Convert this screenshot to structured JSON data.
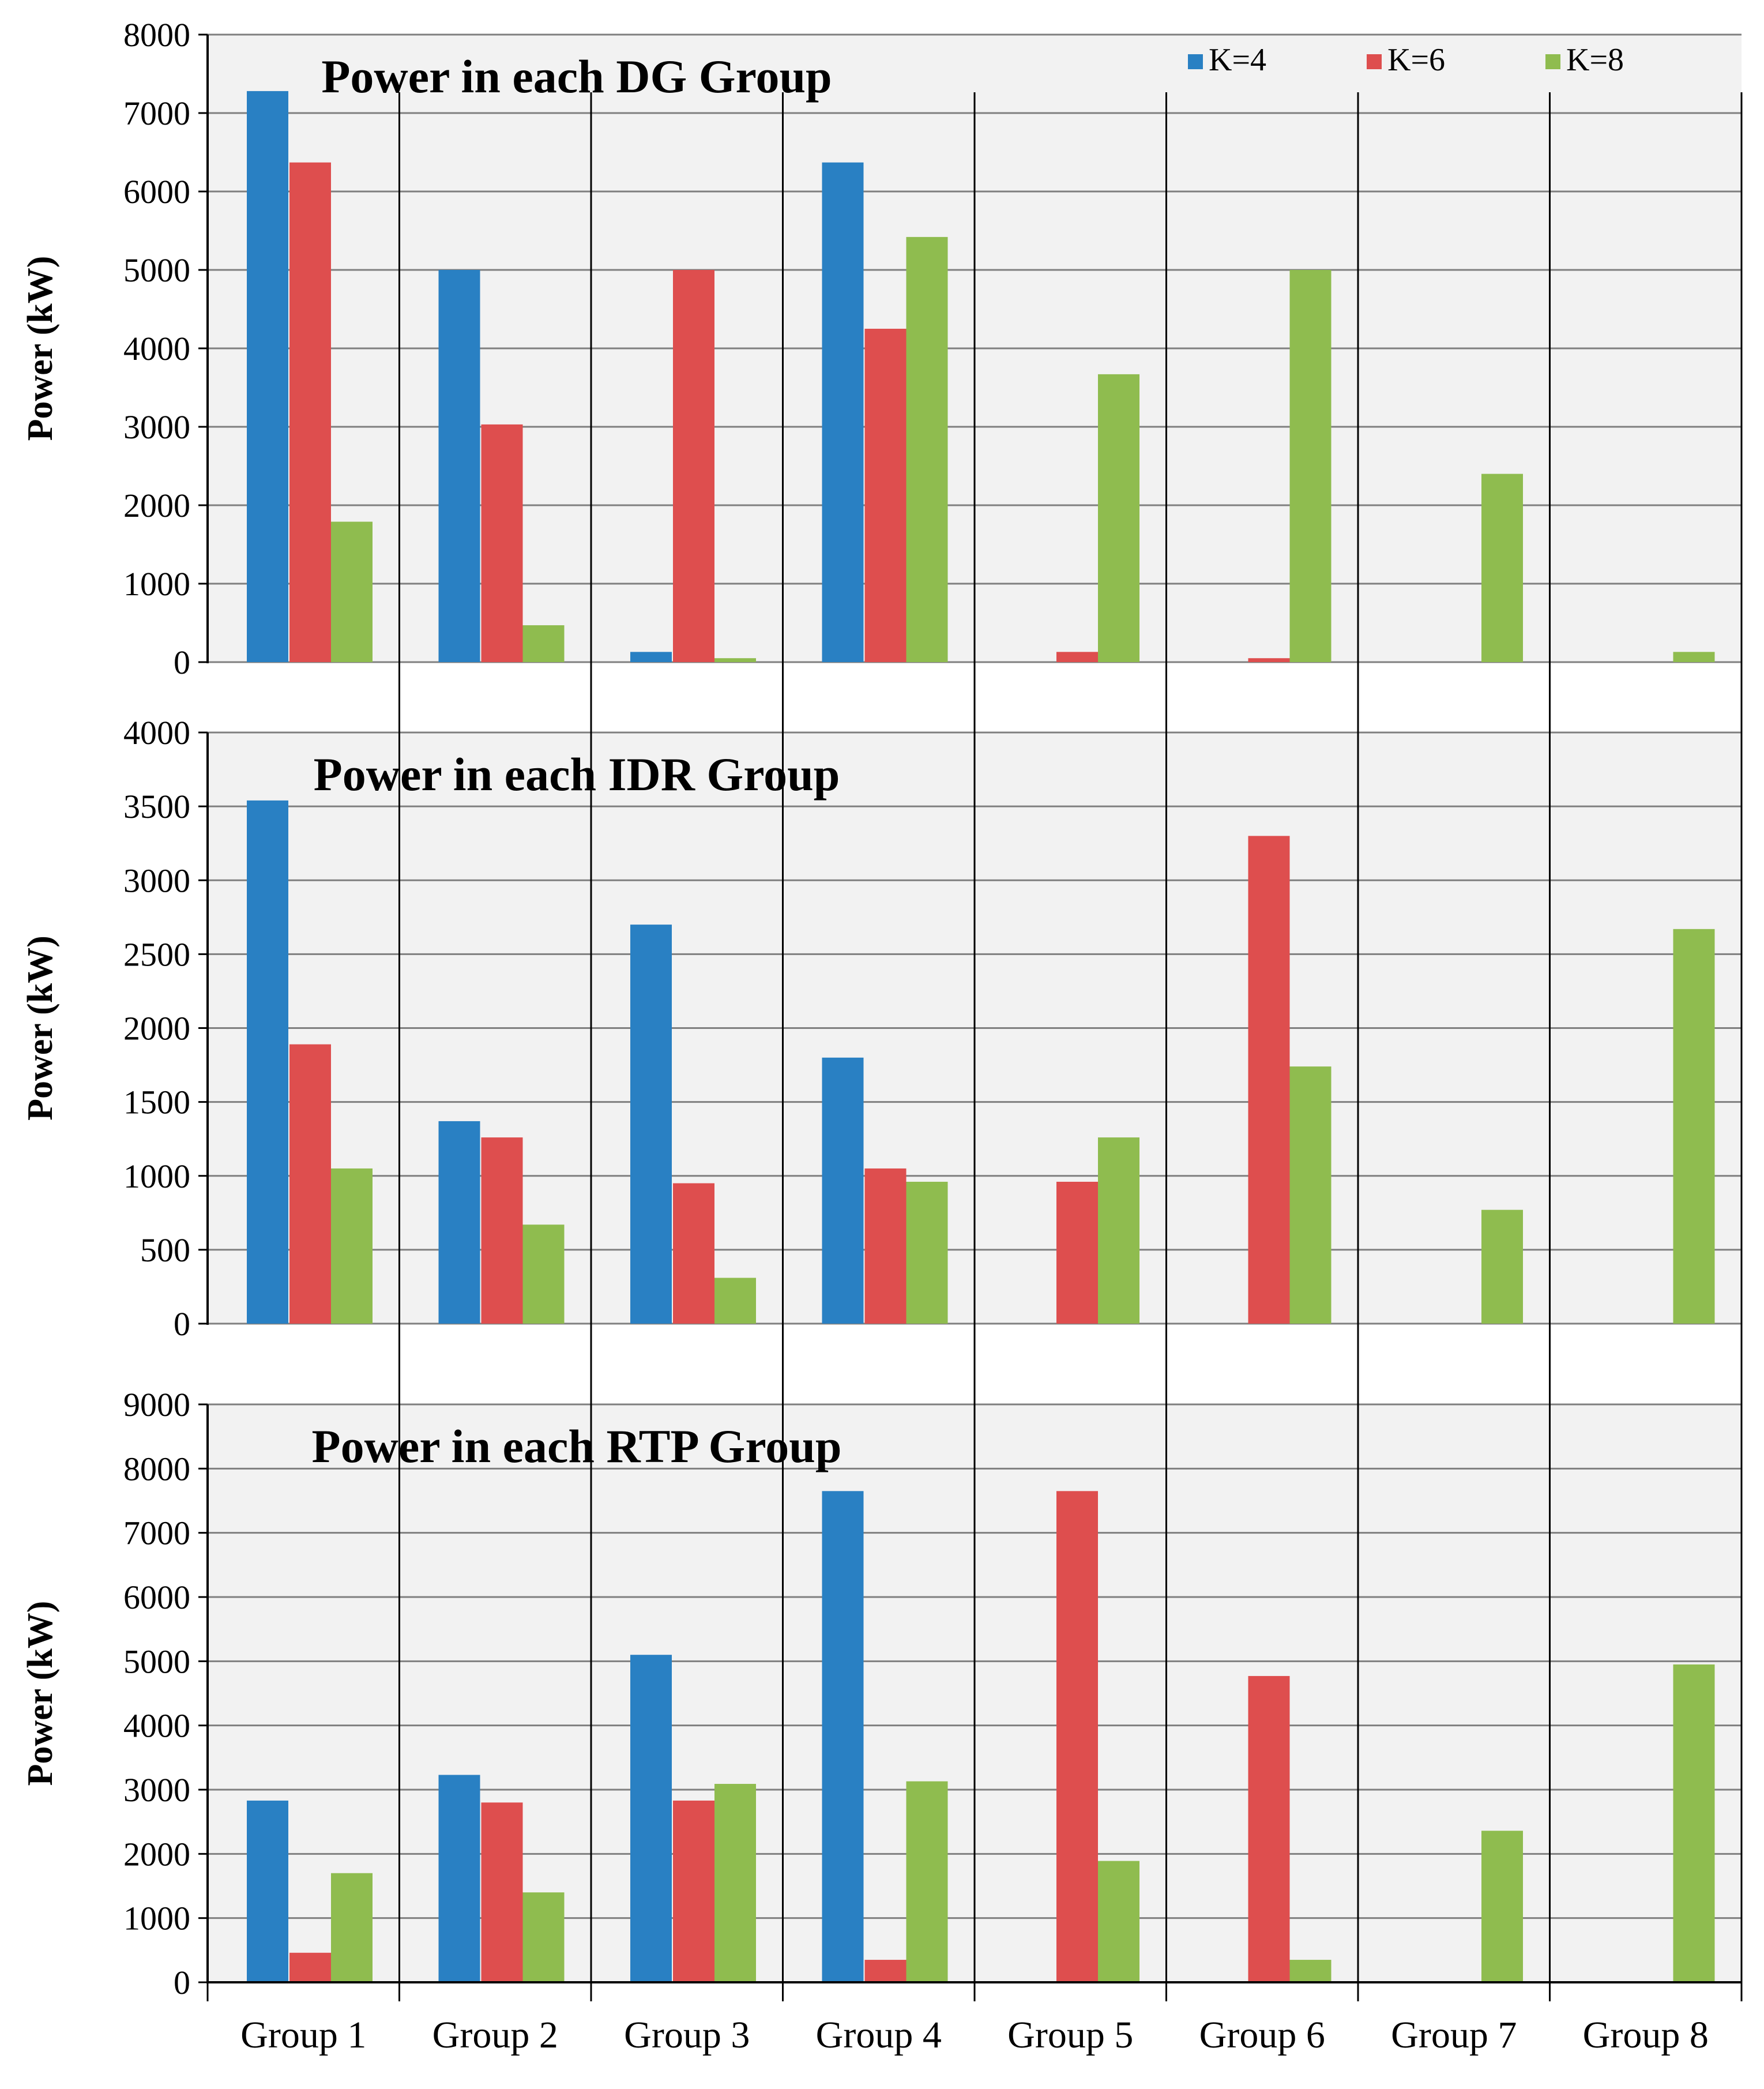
{
  "colors": {
    "K=4": "#2980c3",
    "K=6": "#de4e4e",
    "K=8": "#8fbc4f",
    "plot_bg": "#f2f2f2",
    "grid": "#7f7f7f",
    "axis": "#000000"
  },
  "legend": {
    "placement": "top-right",
    "entries": [
      "K=4",
      "K=6",
      "K=8"
    ]
  },
  "x_categories": [
    "Group 1",
    "Group 2",
    "Group 3",
    "Group 4",
    "Group 5",
    "Group 6",
    "Group 7",
    "Group 8"
  ],
  "chart_data": [
    {
      "type": "bar",
      "title": "Power in each DG Group",
      "ylabel": "Power (kW)",
      "xlabel": "",
      "ylim": [
        0,
        8000
      ],
      "yticks": [
        "0",
        "1000",
        "2000",
        "3000",
        "4000",
        "5000",
        "6000",
        "7000",
        "8000"
      ],
      "categories": [
        "Group 1",
        "Group 2",
        "Group 3",
        "Group 4",
        "Group 5",
        "Group 6",
        "Group 7",
        "Group 8"
      ],
      "grid": true,
      "series": [
        {
          "name": "K=4",
          "values": [
            7280,
            5000,
            130,
            6370,
            0,
            0,
            0,
            0
          ]
        },
        {
          "name": "K=6",
          "values": [
            6370,
            3030,
            5000,
            4250,
            130,
            50,
            0,
            0
          ]
        },
        {
          "name": "K=8",
          "values": [
            1790,
            470,
            50,
            5420,
            3670,
            5000,
            2400,
            130
          ]
        }
      ]
    },
    {
      "type": "bar",
      "title": "Power in each IDR Group",
      "ylabel": "Power (kW)",
      "xlabel": "",
      "ylim": [
        0,
        4000
      ],
      "yticks": [
        "0",
        "500",
        "1000",
        "1500",
        "2000",
        "2500",
        "3000",
        "3500",
        "4000"
      ],
      "categories": [
        "Group 1",
        "Group 2",
        "Group 3",
        "Group 4",
        "Group 5",
        "Group 6",
        "Group 7",
        "Group 8"
      ],
      "grid": true,
      "series": [
        {
          "name": "K=4",
          "values": [
            3540,
            1370,
            2700,
            1800,
            0,
            0,
            0,
            0
          ]
        },
        {
          "name": "K=6",
          "values": [
            1890,
            1260,
            950,
            1050,
            960,
            3300,
            0,
            0
          ]
        },
        {
          "name": "K=8",
          "values": [
            1050,
            670,
            310,
            960,
            1260,
            1740,
            770,
            2670
          ]
        }
      ]
    },
    {
      "type": "bar",
      "title": "Power in each RTP Group",
      "ylabel": "Power (kW)",
      "xlabel": "",
      "ylim": [
        0,
        9000
      ],
      "yticks": [
        "0",
        "1000",
        "2000",
        "3000",
        "4000",
        "5000",
        "6000",
        "7000",
        "8000",
        "9000"
      ],
      "categories": [
        "Group 1",
        "Group 2",
        "Group 3",
        "Group 4",
        "Group 5",
        "Group 6",
        "Group 7",
        "Group 8"
      ],
      "grid": true,
      "series": [
        {
          "name": "K=4",
          "values": [
            2830,
            3230,
            5100,
            7650,
            0,
            0,
            0,
            0
          ]
        },
        {
          "name": "K=6",
          "values": [
            460,
            2800,
            2830,
            350,
            7650,
            4770,
            0,
            0
          ]
        },
        {
          "name": "K=8",
          "values": [
            1700,
            1400,
            3090,
            3130,
            1890,
            350,
            2360,
            4950
          ]
        }
      ]
    }
  ]
}
